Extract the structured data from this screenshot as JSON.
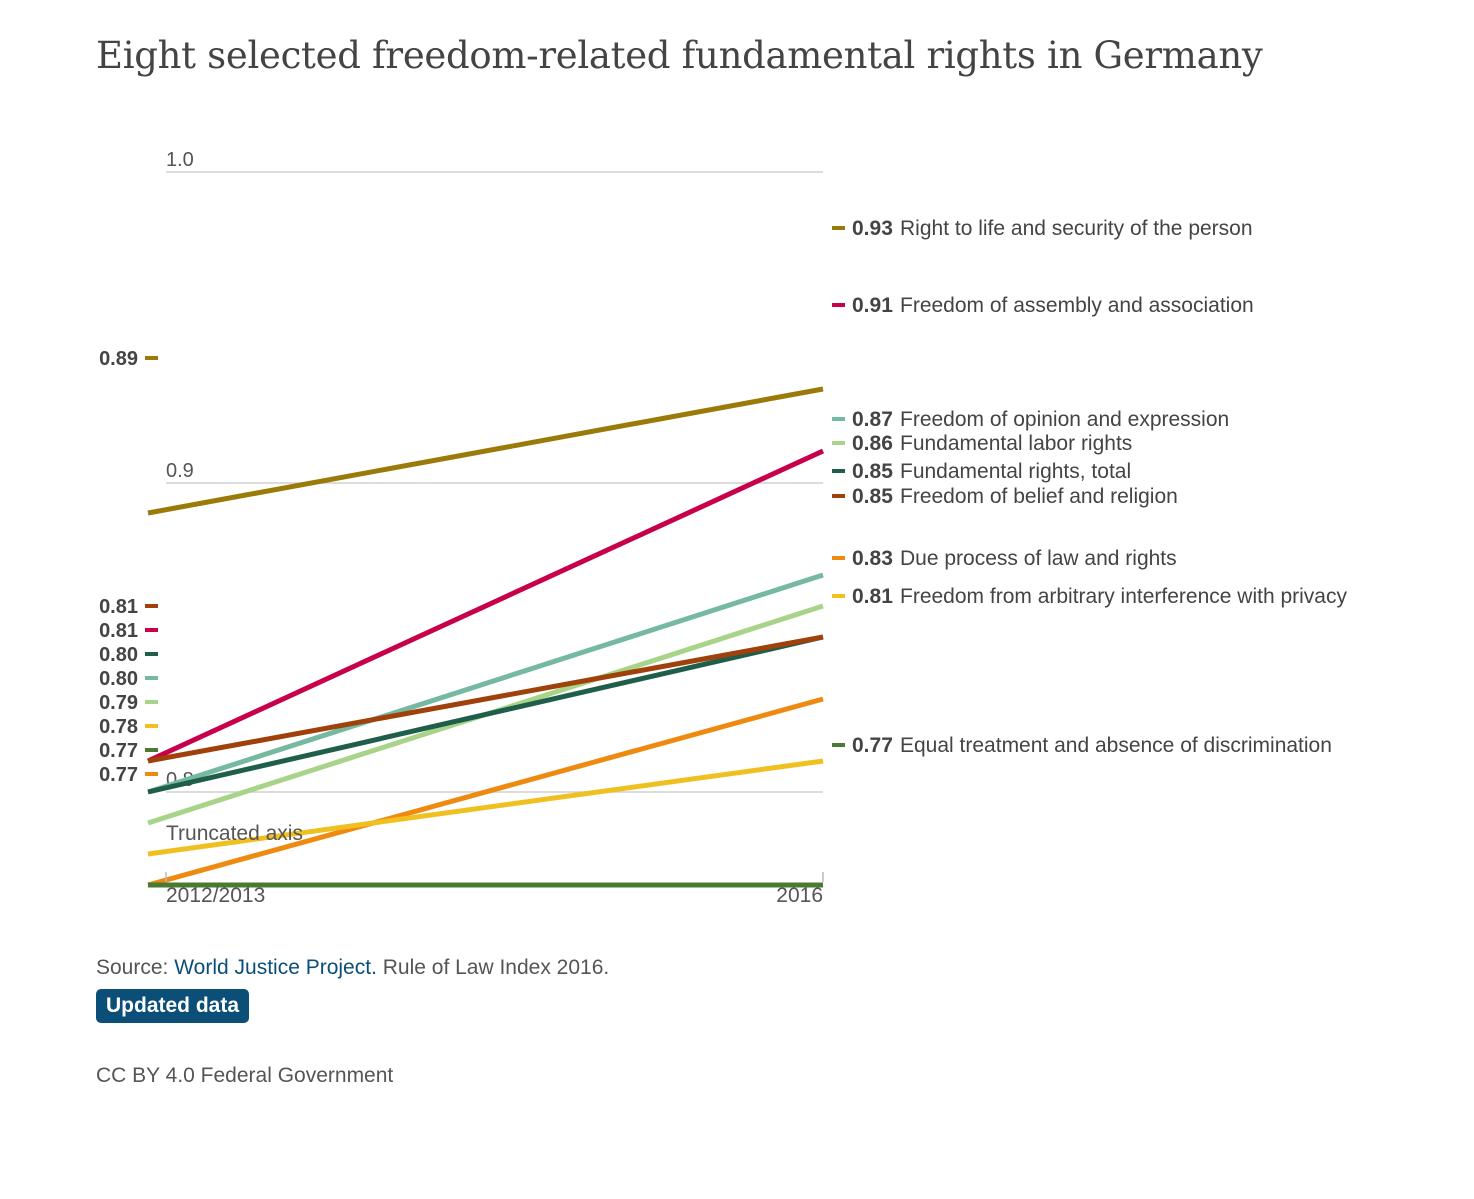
{
  "chart_data": {
    "type": "line",
    "title": "Eight selected freedom-related fundamental rights in Germany",
    "x": [
      "2012/2013",
      "2016"
    ],
    "y_ticks": [
      "1.0",
      "0.9",
      "0.8"
    ],
    "ylim": [
      0.8,
      1.0
    ],
    "axis_note": "Truncated axis",
    "grid": true,
    "series": [
      {
        "name": "Right to life and security of the person",
        "values": [
          0.89,
          0.93
        ],
        "start_label": "0.89",
        "end_label": "0.93",
        "color": "#9a7b0a"
      },
      {
        "name": "Freedom of assembly and association",
        "values": [
          0.81,
          0.91
        ],
        "start_label": "0.81",
        "end_label": "0.91",
        "color": "#c8004c"
      },
      {
        "name": "Freedom of opinion and expression",
        "values": [
          0.8,
          0.87
        ],
        "start_label": "0.80",
        "end_label": "0.87",
        "color": "#74b9a0"
      },
      {
        "name": "Fundamental labor rights",
        "values": [
          0.79,
          0.86
        ],
        "start_label": "0.79",
        "end_label": "0.86",
        "color": "#a8d48a"
      },
      {
        "name": "Fundamental rights, total",
        "values": [
          0.8,
          0.85
        ],
        "start_label": "0.80",
        "end_label": "0.85",
        "color": "#1e5e4a"
      },
      {
        "name": "Freedom of belief and religion",
        "values": [
          0.81,
          0.85
        ],
        "start_label": "0.81",
        "end_label": "0.85",
        "color": "#a0400a"
      },
      {
        "name": "Due process of law and rights",
        "values": [
          0.77,
          0.83
        ],
        "start_label": "0.77",
        "end_label": "0.83",
        "color": "#ef8a11"
      },
      {
        "name": "Freedom from arbitrary interference with privacy",
        "values": [
          0.78,
          0.81
        ],
        "start_label": "0.78",
        "end_label": "0.81",
        "color": "#f0c020"
      },
      {
        "name": "Equal treatment and absence of discrimination",
        "values": [
          0.77,
          0.77
        ],
        "start_label": "0.77",
        "end_label": "0.77",
        "color": "#4a7a32"
      }
    ]
  },
  "footer": {
    "source_prefix": "Source: ",
    "source_link": "World Justice Project.",
    "source_suffix": " Rule of Law Index 2016.",
    "button_label": "Updated data",
    "license": "CC BY 4.0 Federal Government"
  }
}
